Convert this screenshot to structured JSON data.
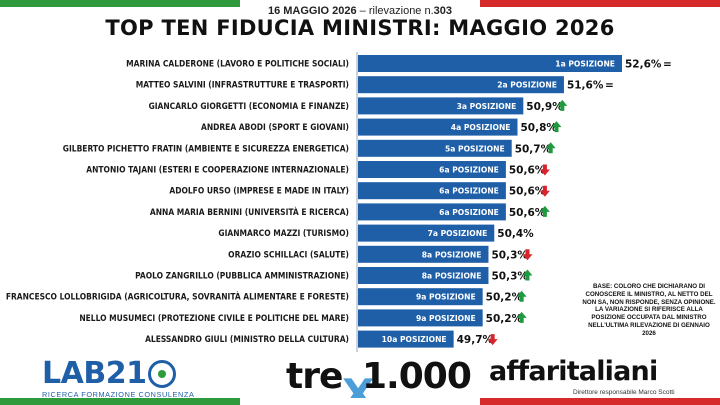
{
  "header": {
    "date": "16 MAGGIO 2026",
    "sep": " – ",
    "survey_prefix": "rilevazione n.",
    "survey_number": "303",
    "title": "TOP TEN FIDUCIA MINISTRI: MAGGIO 2026"
  },
  "chart_data": {
    "type": "bar",
    "orientation": "horizontal",
    "title": "TOP TEN FIDUCIA MINISTRI: MAGGIO 2026",
    "bar_color": "#1f5fa8",
    "xlim": [
      0,
      52.6
    ],
    "rows": [
      {
        "label": "MARINA CALDERONE (LAVORO E POLITICHE SOCIALI)",
        "position": "1a POSIZIONE",
        "value": 52.6,
        "value_label": "52,6%",
        "trend": "equal"
      },
      {
        "label": "MATTEO SALVINI (INFRASTRUTTURE E TRASPORTI)",
        "position": "2a POSIZIONE",
        "value": 51.6,
        "value_label": "51,6%",
        "trend": "equal"
      },
      {
        "label": "GIANCARLO GIORGETTI (ECONOMIA E FINANZE)",
        "position": "3a POSIZIONE",
        "value": 50.9,
        "value_label": "50,9%",
        "trend": "up"
      },
      {
        "label": "ANDREA ABODI (SPORT E GIOVANI)",
        "position": "4a POSIZIONE",
        "value": 50.8,
        "value_label": "50,8%",
        "trend": "up"
      },
      {
        "label": "GILBERTO PICHETTO FRATIN (AMBIENTE E SICUREZZA ENERGETICA)",
        "position": "5a POSIZIONE",
        "value": 50.7,
        "value_label": "50,7%",
        "trend": "up"
      },
      {
        "label": "ANTONIO TAJANI (ESTERI E COOPERAZIONE INTERNAZIONALE)",
        "position": "6a POSIZIONE",
        "value": 50.6,
        "value_label": "50,6%",
        "trend": "down"
      },
      {
        "label": "ADOLFO URSO (IMPRESE E MADE IN ITALY)",
        "position": "6a POSIZIONE",
        "value": 50.6,
        "value_label": "50,6%",
        "trend": "down"
      },
      {
        "label": "ANNA MARIA BERNINI (UNIVERSITÀ E RICERCA)",
        "position": "6a POSIZIONE",
        "value": 50.6,
        "value_label": "50,6%",
        "trend": "up"
      },
      {
        "label": "GIANMARCO MAZZI (TURISMO)",
        "position": "7a POSIZIONE",
        "value": 50.4,
        "value_label": "50,4%",
        "trend": "none"
      },
      {
        "label": "ORAZIO SCHILLACI (SALUTE)",
        "position": "8a POSIZIONE",
        "value": 50.3,
        "value_label": "50,3%",
        "trend": "down"
      },
      {
        "label": "PAOLO ZANGRILLO (PUBBLICA AMMINISTRAZIONE)",
        "position": "8a POSIZIONE",
        "value": 50.3,
        "value_label": "50,3%",
        "trend": "up"
      },
      {
        "label": "FRANCESCO LOLLOBRIGIDA (AGRICOLTURA, SOVRANITÀ ALIMENTARE E FORESTE)",
        "position": "9a POSIZIONE",
        "value": 50.2,
        "value_label": "50,2%",
        "trend": "up"
      },
      {
        "label": "NELLO MUSUMECI (PROTEZIONE CIVILE E POLITICHE DEL MARE)",
        "position": "9a POSIZIONE",
        "value": 50.2,
        "value_label": "50,2%",
        "trend": "up"
      },
      {
        "label": "ALESSANDRO GIULI (MINISTRO DELLA CULTURA)",
        "position": "10a POSIZIONE",
        "value": 49.7,
        "value_label": "49,7%",
        "trend": "down"
      }
    ],
    "trend_symbols": {
      "equal": "=",
      "up": "▲",
      "down": "▼",
      "none": ""
    },
    "trend_colors": {
      "up": "#1f9a3e",
      "down": "#d9232d",
      "equal": "#111111"
    }
  },
  "note": "BASE: COLORO CHE DICHIARANO DI CONOSCERE IL MINISTRO, AL NETTO DEL NON SA, NON RISPONDE, SENZA OPINIONE. LA VARIAZIONE SI RIFERISCE ALLA POSIZIONE OCCUPATA DAL MINISTRO NELL'ULTIMA RILEVAZIONE DI GENNAIO 2026",
  "logos": {
    "lab_name": "LAB21",
    "lab_tagline": "RICERCA FORMAZIONE CONSULENZA",
    "trex_left": "tre",
    "trex_x": "X",
    "trex_right": "1.000",
    "aff_name": "affaritaliani",
    "aff_tagline": "Direttore responsabile Marco Scotti"
  },
  "colors": {
    "flag_green": "#2e9a3c",
    "flag_red": "#d62a2a",
    "bar_blue": "#1f5fa8"
  }
}
